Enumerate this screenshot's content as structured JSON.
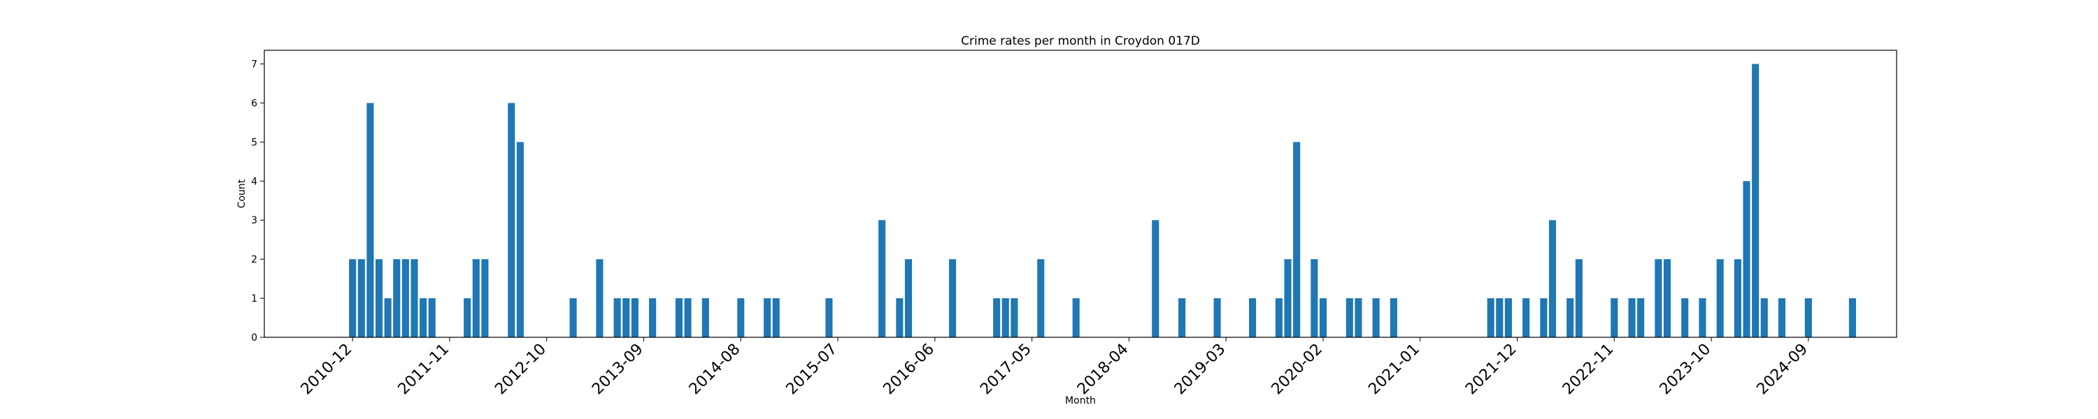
{
  "chart_data": {
    "type": "bar",
    "title": "Crime rates per month in Croydon 017D",
    "xlabel": "Month",
    "ylabel": "Count",
    "ylim": [
      0,
      7.35
    ],
    "yticks": [
      0,
      1,
      2,
      3,
      4,
      5,
      6,
      7
    ],
    "xlim": [
      "2010-02",
      "2025-07"
    ],
    "xticks": [
      "2010-12",
      "2011-11",
      "2012-10",
      "2013-09",
      "2014-08",
      "2015-07",
      "2016-06",
      "2017-05",
      "2018-04",
      "2019-03",
      "2020-02",
      "2021-01",
      "2021-12",
      "2022-11",
      "2023-10",
      "2024-09"
    ],
    "grid": false,
    "color": "#1f77b4",
    "x": [
      "2010-12",
      "2011-01",
      "2011-02",
      "2011-03",
      "2011-04",
      "2011-05",
      "2011-06",
      "2011-07",
      "2011-08",
      "2011-09",
      "2012-01",
      "2012-02",
      "2012-03",
      "2012-06",
      "2012-07",
      "2013-01",
      "2013-04",
      "2013-06",
      "2013-07",
      "2013-08",
      "2013-10",
      "2014-01",
      "2014-02",
      "2014-04",
      "2014-08",
      "2014-11",
      "2014-12",
      "2015-06",
      "2015-12",
      "2016-02",
      "2016-03",
      "2016-08",
      "2017-01",
      "2017-02",
      "2017-03",
      "2017-06",
      "2017-10",
      "2018-07",
      "2018-10",
      "2019-02",
      "2019-06",
      "2019-09",
      "2019-10",
      "2019-11",
      "2020-01",
      "2020-02",
      "2020-05",
      "2020-06",
      "2020-08",
      "2020-10",
      "2021-09",
      "2021-10",
      "2021-11",
      "2022-01",
      "2022-03",
      "2022-04",
      "2022-06",
      "2022-07",
      "2022-11",
      "2023-01",
      "2023-02",
      "2023-04",
      "2023-05",
      "2023-07",
      "2023-09",
      "2023-11",
      "2024-01",
      "2024-02",
      "2024-03",
      "2024-04",
      "2024-06",
      "2024-09",
      "2025-02"
    ],
    "values": [
      2,
      2,
      6,
      2,
      1,
      2,
      2,
      2,
      1,
      1,
      1,
      2,
      2,
      6,
      5,
      1,
      2,
      1,
      1,
      1,
      1,
      1,
      1,
      1,
      1,
      1,
      1,
      1,
      3,
      1,
      2,
      2,
      1,
      1,
      1,
      2,
      1,
      3,
      1,
      1,
      1,
      1,
      2,
      5,
      2,
      1,
      1,
      1,
      1,
      1,
      1,
      1,
      1,
      1,
      1,
      3,
      1,
      2,
      1,
      1,
      1,
      2,
      2,
      1,
      1,
      2,
      2,
      4,
      7,
      1,
      1,
      1,
      1
    ]
  }
}
